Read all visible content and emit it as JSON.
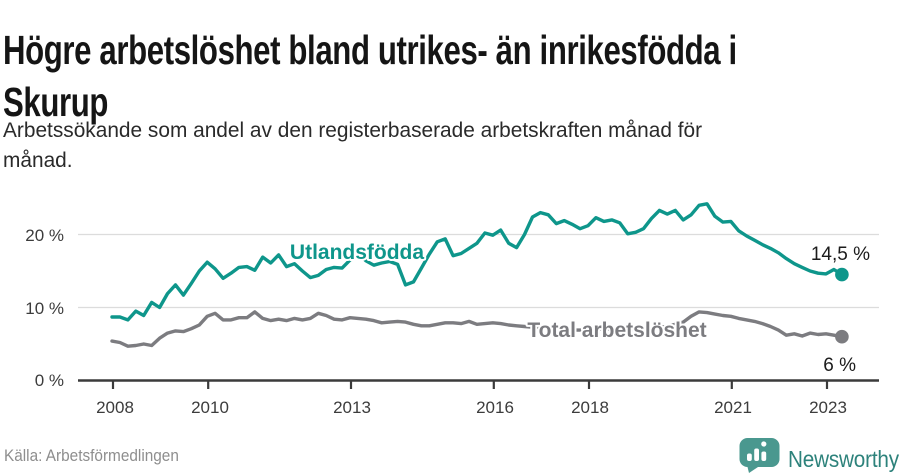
{
  "header": {
    "title_lines": [
      "Högre arbetslöshet bland utrikes- än inrikesfödda i",
      "Skurup"
    ],
    "subtitle_lines": [
      "Arbetssökande som andel av den registerbaserade arbetskraften månad för",
      "månad."
    ]
  },
  "footer": {
    "source": "Källa: Arbetsförmedlingen",
    "brand": "Newsworthy"
  },
  "colors": {
    "utlandsfodda_teal": "#0e968b",
    "total_gray": "#7c7c80",
    "gridline": "#dcdcdc",
    "axis": "#3b3b3b",
    "tick_text": "#3c3c3c",
    "end_label_text": "#1b1b1b",
    "brand_icon_teal": "#4a988f",
    "brand_text_teal": "#2d827b"
  },
  "chart_data": {
    "type": "line",
    "unit": "%",
    "x_start_year": 2008,
    "x_step_months": 2,
    "ylim": [
      0,
      26
    ],
    "grid": "horizontal-only",
    "y_ticks": [
      {
        "value": 20,
        "label": "20 %"
      },
      {
        "value": 10,
        "label": "10 %"
      },
      {
        "value": 0,
        "label": "0 %"
      }
    ],
    "x_ticks": [
      {
        "year": 2008,
        "label": "2008"
      },
      {
        "year": 2010,
        "label": "2010"
      },
      {
        "year": 2013,
        "label": "2013"
      },
      {
        "year": 2016,
        "label": "2016"
      },
      {
        "year": 2018,
        "label": "2018"
      },
      {
        "year": 2021,
        "label": "2021"
      },
      {
        "year": 2023,
        "label": "2023"
      }
    ],
    "series": [
      {
        "name": "Utlandsfödda",
        "color": "#0e968b",
        "end_label": "14,5 %",
        "end_value": 14.5,
        "values": [
          8.7,
          8.7,
          8.3,
          9.5,
          8.9,
          10.7,
          10.0,
          11.9,
          13.1,
          11.7,
          13.3,
          15.0,
          16.2,
          15.3,
          14.0,
          14.7,
          15.5,
          15.6,
          15.1,
          16.9,
          16.1,
          17.2,
          15.6,
          16.0,
          15.0,
          14.1,
          14.4,
          15.2,
          15.5,
          15.4,
          16.5,
          17.4,
          16.4,
          15.8,
          16.1,
          16.3,
          15.9,
          13.1,
          13.5,
          15.4,
          17.3,
          19.0,
          19.4,
          17.1,
          17.4,
          18.1,
          18.8,
          20.2,
          19.9,
          20.6,
          18.8,
          18.2,
          20.0,
          22.4,
          23.0,
          22.7,
          21.5,
          21.9,
          21.4,
          20.8,
          21.2,
          22.3,
          21.8,
          22.0,
          21.6,
          20.1,
          20.3,
          20.8,
          22.2,
          23.3,
          22.8,
          23.3,
          22.0,
          22.7,
          24.0,
          24.2,
          22.5,
          21.7,
          21.8,
          20.5,
          19.8,
          19.2,
          18.6,
          18.1,
          17.5,
          16.7,
          16.0,
          15.5,
          15.0,
          14.7,
          14.6,
          15.2,
          14.5
        ]
      },
      {
        "name": "Total arbetslöshet",
        "color": "#7c7c80",
        "end_label": "6 %",
        "end_value": 6.0,
        "values": [
          5.4,
          5.2,
          4.7,
          4.8,
          5.0,
          4.8,
          5.8,
          6.5,
          6.8,
          6.7,
          7.1,
          7.6,
          8.8,
          9.2,
          8.3,
          8.3,
          8.6,
          8.6,
          9.4,
          8.5,
          8.2,
          8.4,
          8.2,
          8.5,
          8.3,
          8.5,
          9.2,
          8.9,
          8.4,
          8.3,
          8.6,
          8.5,
          8.4,
          8.2,
          7.9,
          8.0,
          8.1,
          8.0,
          7.7,
          7.5,
          7.5,
          7.7,
          7.9,
          7.9,
          7.8,
          8.1,
          7.7,
          7.8,
          7.9,
          7.8,
          7.6,
          7.5,
          7.4,
          7.3,
          7.3,
          7.2,
          7.1,
          7.0,
          6.9,
          6.9,
          7.0,
          7.1,
          7.1,
          7.0,
          6.9,
          7.0,
          7.0,
          7.1,
          7.2,
          7.3,
          7.4,
          7.7,
          8.0,
          8.8,
          9.4,
          9.3,
          9.1,
          8.9,
          8.8,
          8.5,
          8.3,
          8.1,
          7.8,
          7.4,
          6.9,
          6.2,
          6.4,
          6.1,
          6.5,
          6.3,
          6.4,
          6.2,
          6.0
        ]
      }
    ]
  }
}
